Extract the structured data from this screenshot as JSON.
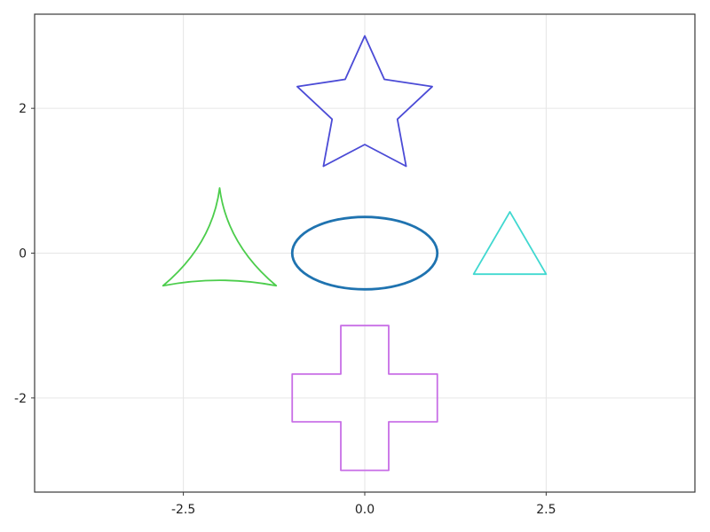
{
  "chart_data": {
    "type": "line",
    "title": "",
    "xlabel": "",
    "ylabel": "",
    "xlim": [
      -4.55,
      4.55
    ],
    "ylim": [
      -3.3,
      3.3
    ],
    "grid": true,
    "x_ticks": [
      {
        "value": -2.5,
        "label": "-2.5"
      },
      {
        "value": 0.0,
        "label": "0.0"
      },
      {
        "value": 2.5,
        "label": "2.5"
      }
    ],
    "y_ticks": [
      {
        "value": -2,
        "label": "-2"
      },
      {
        "value": 0,
        "label": "0"
      },
      {
        "value": 2,
        "label": "2"
      }
    ],
    "series": [
      {
        "shape": "star",
        "color": "#4b4bd6",
        "line_width": 1.8,
        "points": [
          [
            0,
            3
          ],
          [
            0.27,
            2.4
          ],
          [
            0.93,
            2.3
          ],
          [
            0.45,
            1.85
          ],
          [
            0.57,
            1.2
          ],
          [
            0,
            1.5
          ],
          [
            -0.57,
            1.2
          ],
          [
            -0.45,
            1.85
          ],
          [
            -0.93,
            2.3
          ],
          [
            -0.27,
            2.4
          ],
          [
            0,
            3
          ]
        ]
      },
      {
        "shape": "ellipse",
        "color": "#1f73b0",
        "line_width": 2.8,
        "center": [
          0,
          0
        ],
        "rx": 1.0,
        "ry": 0.5
      },
      {
        "shape": "curved-triangle",
        "color": "#4ccd4c",
        "line_width": 1.8,
        "vertices": [
          [
            -2,
            0.9
          ],
          [
            -2.78,
            -0.45
          ],
          [
            -1.22,
            -0.45
          ]
        ],
        "sag": [
          [
            -2.1,
            0.12
          ],
          [
            -2,
            -0.3
          ],
          [
            -1.9,
            0.12
          ]
        ]
      },
      {
        "shape": "triangle",
        "color": "#40d8d0",
        "line_width": 1.8,
        "points": [
          [
            2,
            0.57
          ],
          [
            2.5,
            -0.29
          ],
          [
            1.5,
            -0.29
          ],
          [
            2,
            0.57
          ]
        ]
      },
      {
        "shape": "cross",
        "color": "#c86ee6",
        "line_width": 1.8,
        "points": [
          [
            -0.33,
            -1
          ],
          [
            0.33,
            -1
          ],
          [
            0.33,
            -1.67
          ],
          [
            1,
            -1.67
          ],
          [
            1,
            -2.33
          ],
          [
            0.33,
            -2.33
          ],
          [
            0.33,
            -3
          ],
          [
            -0.33,
            -3
          ],
          [
            -0.33,
            -2.33
          ],
          [
            -1,
            -2.33
          ],
          [
            -1,
            -1.67
          ],
          [
            -0.33,
            -1.67
          ],
          [
            -0.33,
            -1
          ]
        ]
      }
    ]
  }
}
